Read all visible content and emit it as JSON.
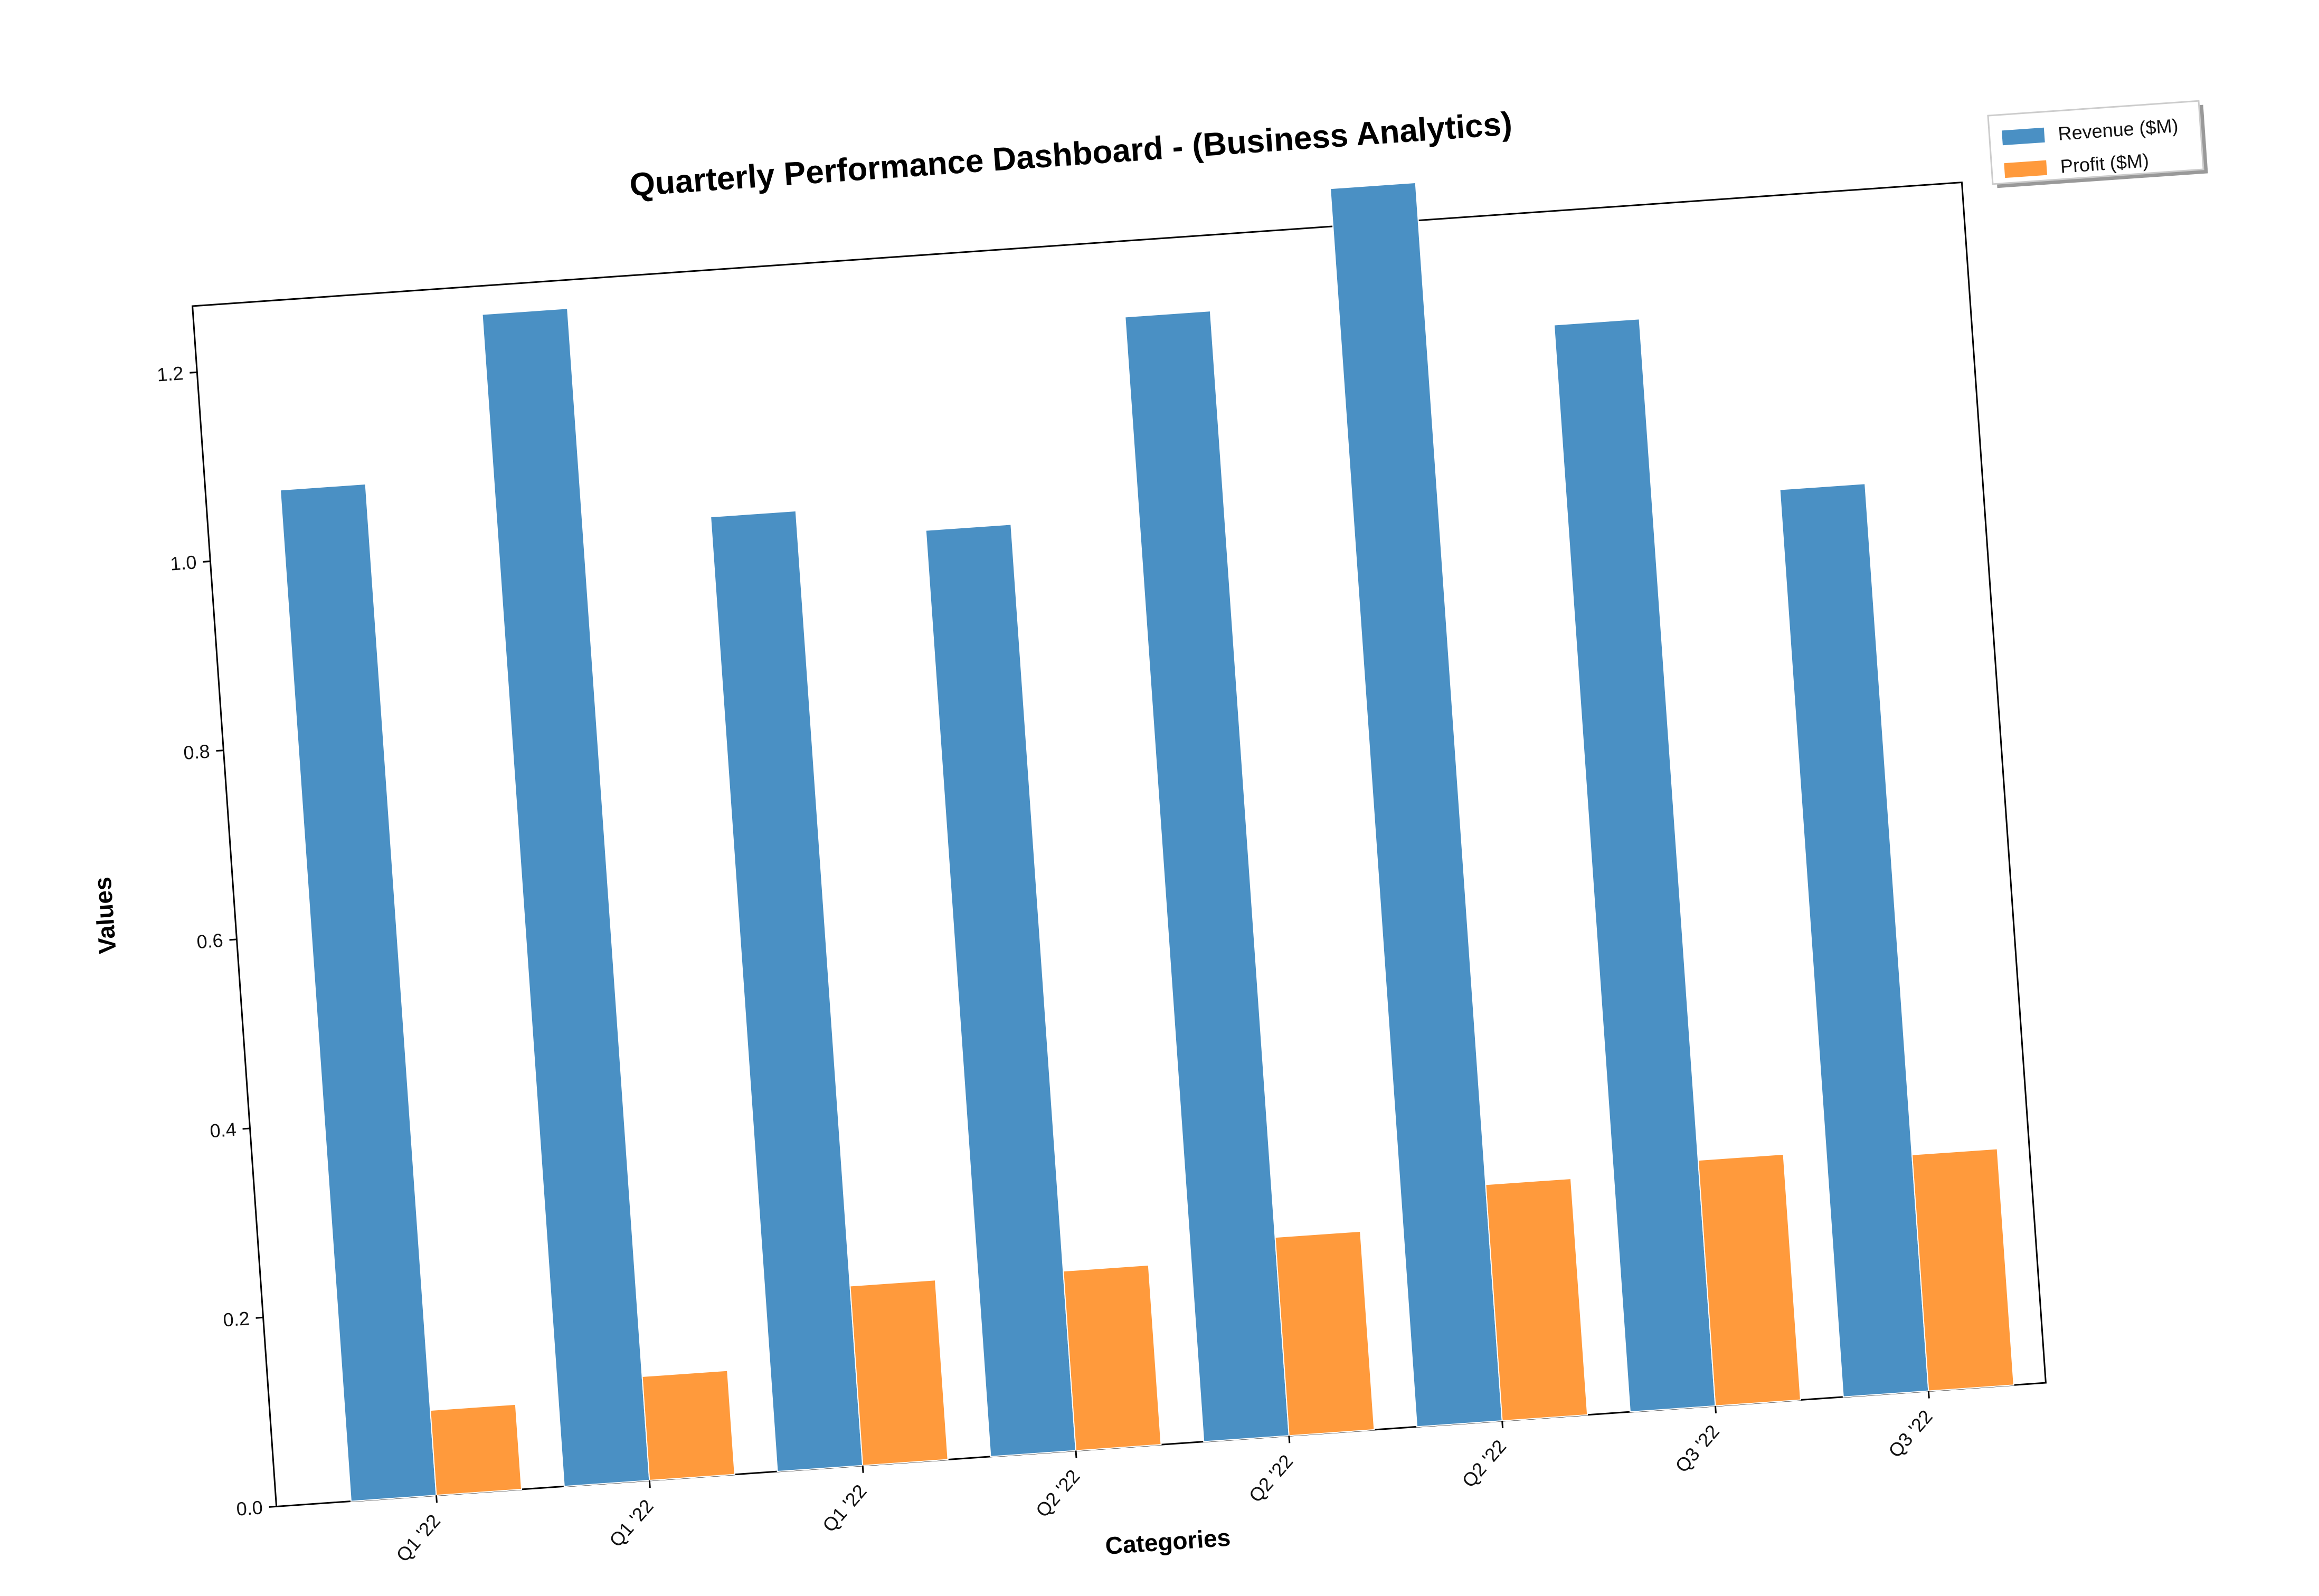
{
  "chart_data": {
    "type": "bar",
    "title": "Quarterly Performance Dashboard - (Business Analytics)",
    "xlabel": "Categories",
    "ylabel": "Values",
    "categories": [
      "Q1 '22",
      "Q1 '22",
      "Q1 '22",
      "Q2 '22",
      "Q2 '22",
      "Q2 '22",
      "Q3 '22",
      "Q3 '22"
    ],
    "series": [
      {
        "name": "Revenue ($M)",
        "color": "#4a90c4",
        "values": [
          1.07,
          1.24,
          1.01,
          0.98,
          1.19,
          1.31,
          1.15,
          0.96
        ]
      },
      {
        "name": "Profit ($M)",
        "color": "#ff9a3c",
        "values": [
          0.09,
          0.11,
          0.19,
          0.19,
          0.21,
          0.25,
          0.26,
          0.25
        ]
      }
    ],
    "ylim": [
      0,
      1.27
    ],
    "yticks": [
      "0.0",
      "0.2",
      "0.4",
      "0.6",
      "0.8",
      "1.0",
      "1.2"
    ],
    "ytick_values": [
      0,
      0.2,
      0.4,
      0.6,
      0.8,
      1.0,
      1.2
    ],
    "grid": false,
    "legend_position": "top-right (outside plot)",
    "rotation_deg": -4
  }
}
